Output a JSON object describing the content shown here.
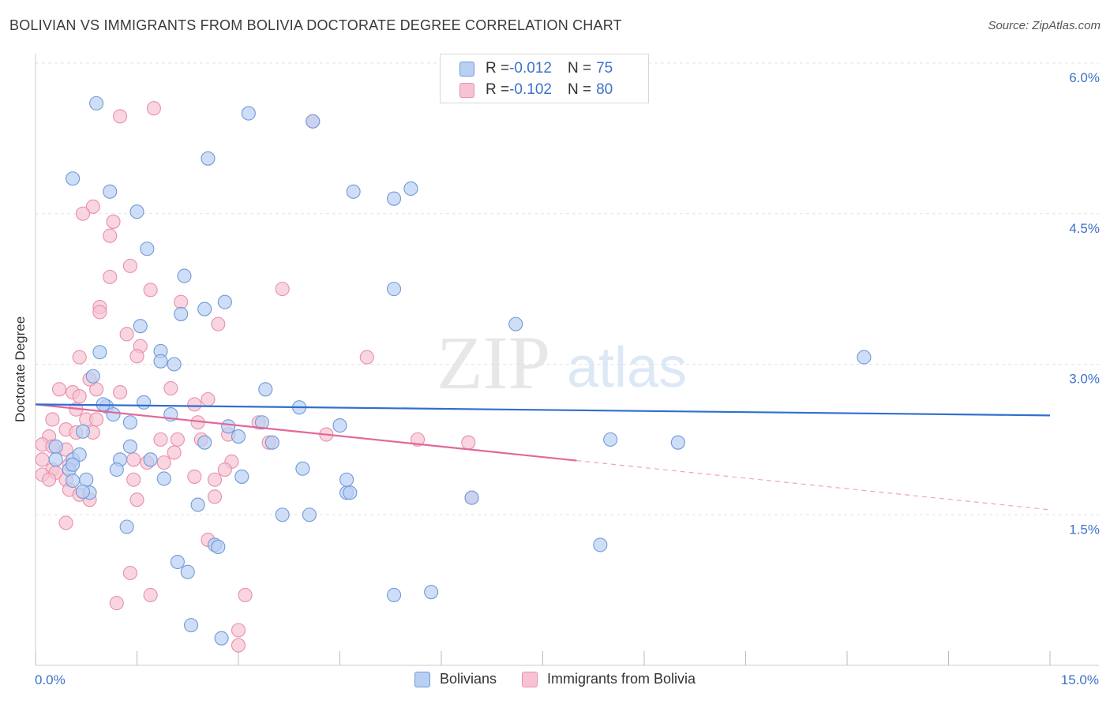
{
  "title": "BOLIVIAN VS IMMIGRANTS FROM BOLIVIA DOCTORATE DEGREE CORRELATION CHART",
  "source": "Source: ZipAtlas.com",
  "watermark": {
    "zip": "ZIP",
    "atlas": "atlas"
  },
  "legend_top": [
    {
      "r_label": "R = ",
      "r_value": "-0.012",
      "n_label": "N = ",
      "n_value": "75"
    },
    {
      "r_label": "R = ",
      "r_value": "-0.102",
      "n_label": "N = ",
      "n_value": "80"
    }
  ],
  "legend_bottom": [
    "Bolivians",
    "Immigrants from Bolivia"
  ],
  "chart_data": {
    "type": "scatter",
    "title": "BOLIVIAN VS IMMIGRANTS FROM BOLIVIA DOCTORATE DEGREE CORRELATION CHART",
    "xlabel": "",
    "ylabel": "Doctorate Degree",
    "xlim": [
      0,
      15
    ],
    "ylim": [
      0,
      6
    ],
    "x_tick_labels": {
      "min": "0.0%",
      "max": "15.0%"
    },
    "y_ticks": [
      {
        "value": 1.5,
        "label": "1.5%"
      },
      {
        "value": 3.0,
        "label": "3.0%"
      },
      {
        "value": 4.5,
        "label": "4.5%"
      },
      {
        "value": 6.0,
        "label": "6.0%"
      }
    ],
    "colors": {
      "blue_fill": "#b9d0f3",
      "blue_stroke": "#6f9ad9",
      "blue_line": "#2f6fcd",
      "pink_fill": "#f7c3d3",
      "pink_stroke": "#e88fab",
      "pink_line": "#e2679a",
      "grid": "#e3e3e3",
      "axis_text": "#3e72c8"
    },
    "series": [
      {
        "name": "Bolivians",
        "r": -0.012,
        "n": 75,
        "trend": {
          "x0": 0,
          "y0": 2.6,
          "x1": 15,
          "y1": 2.49,
          "solid_until": 15
        },
        "points": [
          [
            0.9,
            5.6
          ],
          [
            3.15,
            5.5
          ],
          [
            2.55,
            5.05
          ],
          [
            0.55,
            4.85
          ],
          [
            1.1,
            4.72
          ],
          [
            1.5,
            4.52
          ],
          [
            4.7,
            4.72
          ],
          [
            5.3,
            4.65
          ],
          [
            5.55,
            4.75
          ],
          [
            1.65,
            4.15
          ],
          [
            2.2,
            3.88
          ],
          [
            2.8,
            3.62
          ],
          [
            2.5,
            3.55
          ],
          [
            2.15,
            3.5
          ],
          [
            5.3,
            3.75
          ],
          [
            7.1,
            3.4
          ],
          [
            1.55,
            3.38
          ],
          [
            0.95,
            3.12
          ],
          [
            1.85,
            3.13
          ],
          [
            0.85,
            2.88
          ],
          [
            1.85,
            3.03
          ],
          [
            2.05,
            3.0
          ],
          [
            1.05,
            2.58
          ],
          [
            1.6,
            2.62
          ],
          [
            0.7,
            2.33
          ],
          [
            1.4,
            2.42
          ],
          [
            2.0,
            2.5
          ],
          [
            3.4,
            2.75
          ],
          [
            3.9,
            2.57
          ],
          [
            4.5,
            2.39
          ],
          [
            2.85,
            2.38
          ],
          [
            3.35,
            2.42
          ],
          [
            0.3,
            2.18
          ],
          [
            0.3,
            2.05
          ],
          [
            0.55,
            2.05
          ],
          [
            0.65,
            2.1
          ],
          [
            0.5,
            1.95
          ],
          [
            1.25,
            2.05
          ],
          [
            1.4,
            2.18
          ],
          [
            1.2,
            1.95
          ],
          [
            1.7,
            2.05
          ],
          [
            2.5,
            2.22
          ],
          [
            3.0,
            2.28
          ],
          [
            3.5,
            2.22
          ],
          [
            0.55,
            1.84
          ],
          [
            0.75,
            1.85
          ],
          [
            0.8,
            1.72
          ],
          [
            1.9,
            1.86
          ],
          [
            3.05,
            1.88
          ],
          [
            3.95,
            1.96
          ],
          [
            4.6,
            1.72
          ],
          [
            4.6,
            1.85
          ],
          [
            4.65,
            1.72
          ],
          [
            2.4,
            1.6
          ],
          [
            1.35,
            1.38
          ],
          [
            3.65,
            1.5
          ],
          [
            4.05,
            1.5
          ],
          [
            6.45,
            1.67
          ],
          [
            2.65,
            1.2
          ],
          [
            2.7,
            1.18
          ],
          [
            2.1,
            1.03
          ],
          [
            2.25,
            0.93
          ],
          [
            5.3,
            0.7
          ],
          [
            5.85,
            0.73
          ],
          [
            2.3,
            0.4
          ],
          [
            2.75,
            0.27
          ],
          [
            8.35,
            1.2
          ],
          [
            8.5,
            2.25
          ],
          [
            9.5,
            2.22
          ],
          [
            12.25,
            3.07
          ],
          [
            0.7,
            1.73
          ],
          [
            1.15,
            2.5
          ],
          [
            4.1,
            5.42
          ],
          [
            0.55,
            2.0
          ],
          [
            1.0,
            2.6
          ]
        ]
      },
      {
        "name": "Immigrants from Bolivia",
        "r": -0.102,
        "n": 80,
        "trend": {
          "x0": 0,
          "y0": 2.6,
          "x1": 15,
          "y1": 1.55,
          "solid_until": 8.0
        },
        "points": [
          [
            1.25,
            5.47
          ],
          [
            1.75,
            5.55
          ],
          [
            0.85,
            4.57
          ],
          [
            0.7,
            4.5
          ],
          [
            1.15,
            4.42
          ],
          [
            1.1,
            4.28
          ],
          [
            1.4,
            3.98
          ],
          [
            1.1,
            3.87
          ],
          [
            1.7,
            3.74
          ],
          [
            0.95,
            3.57
          ],
          [
            0.95,
            3.52
          ],
          [
            2.15,
            3.62
          ],
          [
            2.7,
            3.4
          ],
          [
            3.65,
            3.75
          ],
          [
            4.9,
            3.07
          ],
          [
            1.35,
            3.3
          ],
          [
            1.55,
            3.18
          ],
          [
            0.65,
            3.07
          ],
          [
            1.5,
            3.08
          ],
          [
            0.35,
            2.75
          ],
          [
            0.55,
            2.72
          ],
          [
            0.65,
            2.68
          ],
          [
            0.9,
            2.75
          ],
          [
            1.25,
            2.72
          ],
          [
            0.8,
            2.85
          ],
          [
            2.0,
            2.76
          ],
          [
            2.55,
            2.65
          ],
          [
            2.35,
            2.6
          ],
          [
            0.25,
            2.45
          ],
          [
            0.6,
            2.55
          ],
          [
            0.75,
            2.45
          ],
          [
            0.9,
            2.45
          ],
          [
            0.2,
            2.28
          ],
          [
            0.45,
            2.35
          ],
          [
            0.6,
            2.32
          ],
          [
            0.85,
            2.32
          ],
          [
            2.4,
            2.42
          ],
          [
            3.3,
            2.42
          ],
          [
            2.85,
            2.3
          ],
          [
            4.3,
            2.3
          ],
          [
            5.65,
            2.25
          ],
          [
            6.4,
            2.22
          ],
          [
            0.1,
            2.2
          ],
          [
            0.25,
            2.18
          ],
          [
            0.45,
            2.15
          ],
          [
            0.1,
            2.05
          ],
          [
            0.25,
            1.95
          ],
          [
            0.5,
            2.0
          ],
          [
            0.1,
            1.9
          ],
          [
            0.3,
            1.92
          ],
          [
            0.2,
            1.85
          ],
          [
            0.45,
            1.85
          ],
          [
            0.5,
            1.75
          ],
          [
            0.65,
            1.7
          ],
          [
            1.45,
            2.05
          ],
          [
            1.65,
            2.02
          ],
          [
            1.9,
            2.02
          ],
          [
            2.05,
            2.12
          ],
          [
            1.85,
            2.25
          ],
          [
            2.1,
            2.25
          ],
          [
            2.45,
            2.25
          ],
          [
            3.45,
            2.22
          ],
          [
            2.9,
            2.03
          ],
          [
            2.8,
            1.95
          ],
          [
            1.45,
            1.85
          ],
          [
            1.5,
            1.65
          ],
          [
            0.8,
            1.65
          ],
          [
            2.35,
            1.88
          ],
          [
            2.65,
            1.85
          ],
          [
            2.65,
            1.68
          ],
          [
            0.45,
            1.42
          ],
          [
            2.55,
            1.25
          ],
          [
            1.4,
            0.92
          ],
          [
            1.7,
            0.7
          ],
          [
            1.2,
            0.62
          ],
          [
            3.1,
            0.7
          ],
          [
            3.0,
            0.35
          ],
          [
            3.0,
            0.2
          ],
          [
            4.1,
            5.42
          ],
          [
            6.45,
            1.67
          ]
        ]
      }
    ]
  }
}
